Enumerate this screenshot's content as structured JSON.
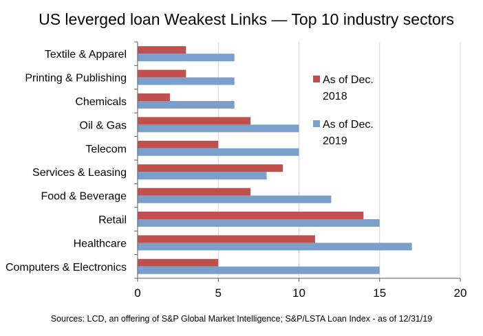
{
  "chart_data": {
    "type": "bar",
    "orientation": "horizontal",
    "title": "US leverged loan Weakest Links — Top 10 industry sectors",
    "categories": [
      "Textile & Apparel",
      "Printing & Publishing",
      "Chemicals",
      "Oil & Gas",
      "Telecom",
      "Services & Leasing",
      "Food & Beverage",
      "Retail",
      "Healthcare",
      "Computers & Electronics"
    ],
    "series": [
      {
        "name": "As of Dec. 2018",
        "name_lines": [
          "As of Dec.",
          "2018"
        ],
        "color": "#c0504d",
        "values": [
          3,
          3,
          2,
          7,
          5,
          9,
          7,
          14,
          11,
          5
        ]
      },
      {
        "name": "As of Dec. 2019",
        "name_lines": [
          "As of Dec.",
          "2019"
        ],
        "color": "#7b9fcb",
        "values": [
          6,
          6,
          6,
          10,
          10,
          8,
          12,
          15,
          17,
          15
        ]
      }
    ],
    "xlim": [
      0,
      20
    ],
    "xticks": [
      "0",
      "5",
      "10",
      "15",
      "20"
    ],
    "xlabel": "",
    "ylabel": "",
    "grid": "vertical",
    "legend_position": "upper-right inside plot",
    "source": "Sources: LCD, an offering of S&P Global Market Intelligence; S&P/LSTA Loan Index - as of 12/31/19"
  }
}
